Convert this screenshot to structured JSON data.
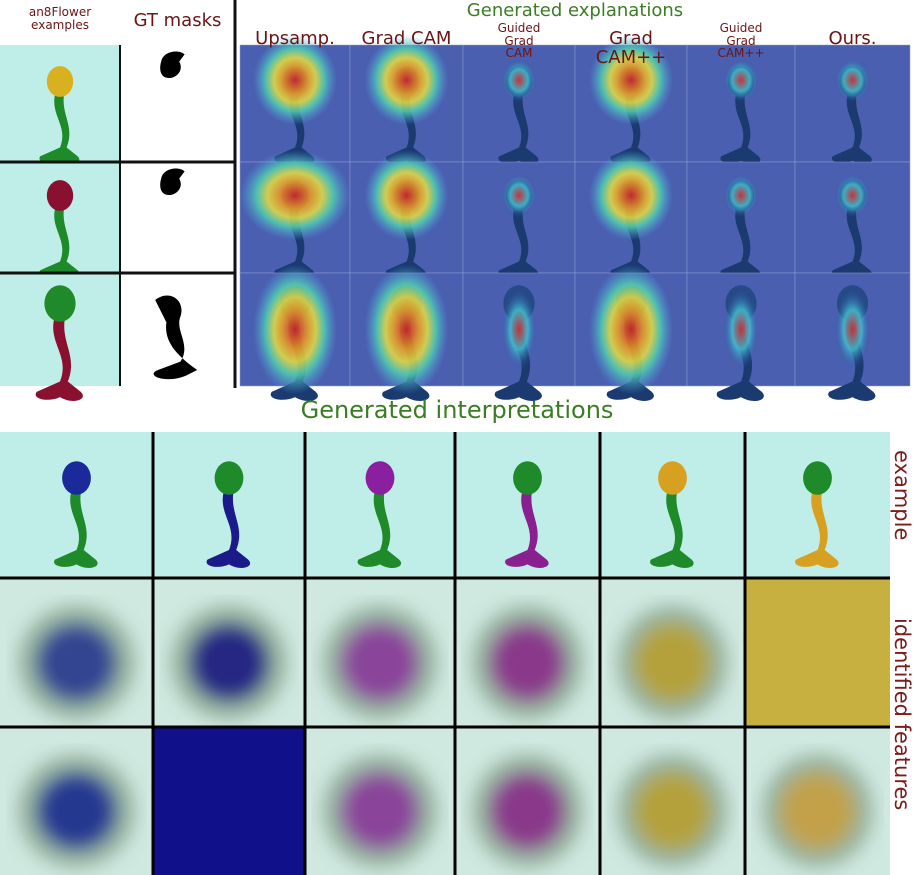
{
  "top": {
    "left_headers": [
      "an8Flower examples",
      "GT masks"
    ],
    "title": "Generated explanations",
    "method_headers": [
      "Upsamp.",
      "Grad CAM",
      "Guided Grad CAM",
      "Grad CAM++",
      "Guided Grad CAM++",
      "Ours."
    ]
  },
  "bottom": {
    "title": "Generated interpretations",
    "row_labels": [
      "example",
      "identified features"
    ]
  }
}
